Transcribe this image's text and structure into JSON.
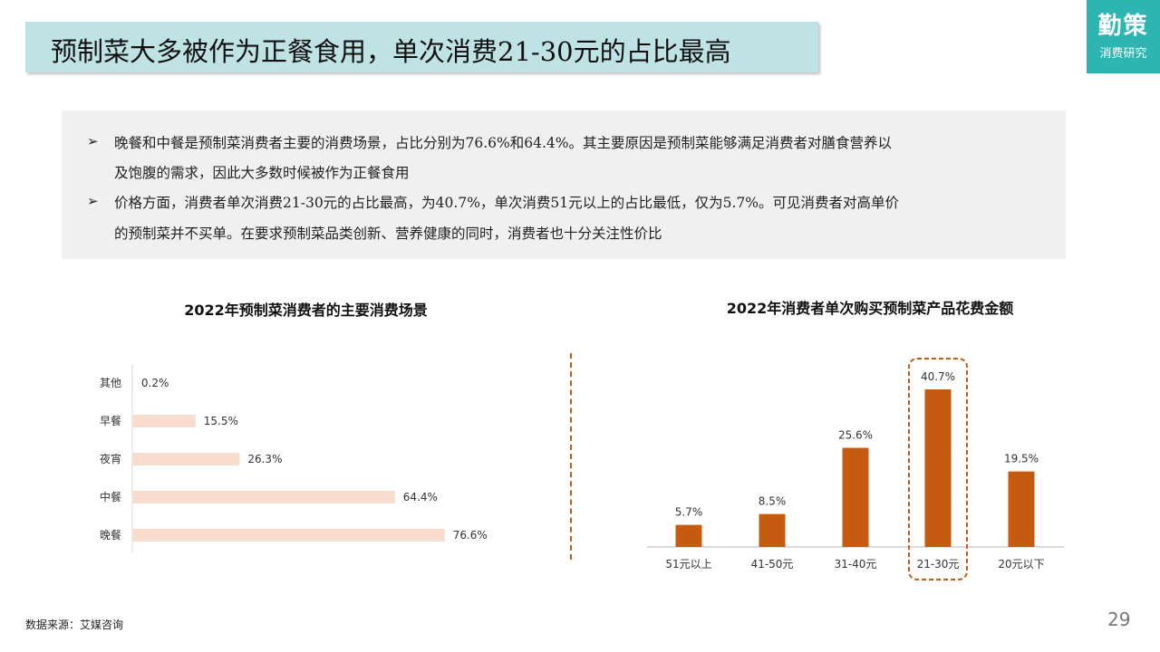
{
  "header": {
    "title": "预制菜大多被作为正餐食用，单次消费21-30元的占比最高",
    "brand_main": "勤策",
    "brand_sub": "消费研究"
  },
  "summary": {
    "bullet_symbol": "➢",
    "points": [
      {
        "line1": "晚餐和中餐是预制菜消费者主要的消费场景，占比分别为76.6%和64.4%。其主要原因是预制菜能够满足消费者对膳食营养以",
        "line2": "及饱腹的需求，因此大多数时候被作为正餐食用"
      },
      {
        "line1": "价格方面，消费者单次消费21-30元的占比最高，为40.7%，单次消费51元以上的占比最低，仅为5.7%。可见消费者对高单价",
        "line2": "的预制菜并不买单。在要求预制菜品类创新、营养健康的同时，消费者也十分关注性价比"
      }
    ]
  },
  "chart_data": [
    {
      "type": "bar",
      "orientation": "horizontal",
      "title": "2022年预制菜消费者的主要消费场景",
      "categories": [
        "其他",
        "早餐",
        "夜宵",
        "中餐",
        "晚餐"
      ],
      "values": [
        0.2,
        15.5,
        26.3,
        64.4,
        76.6
      ],
      "labels": [
        "0.2%",
        "15.5%",
        "26.3%",
        "64.4%",
        "76.6%"
      ],
      "unit": "%",
      "xlim": [
        0,
        100
      ],
      "color": "#f8dccd"
    },
    {
      "type": "bar",
      "orientation": "vertical",
      "title": "2022年消费者单次购买预制菜产品花费金额",
      "categories": [
        "51元以上",
        "41-50元",
        "31-40元",
        "21-30元",
        "20元以下"
      ],
      "values": [
        5.7,
        8.5,
        25.6,
        40.7,
        19.5
      ],
      "labels": [
        "5.7%",
        "8.5%",
        "25.6%",
        "40.7%",
        "19.5%"
      ],
      "unit": "%",
      "ylim": [
        0,
        45
      ],
      "color": "#c55a11",
      "highlight": "21-30元"
    }
  ],
  "footer": {
    "source": "数据来源：艾媒咨询",
    "page_number": "29"
  }
}
